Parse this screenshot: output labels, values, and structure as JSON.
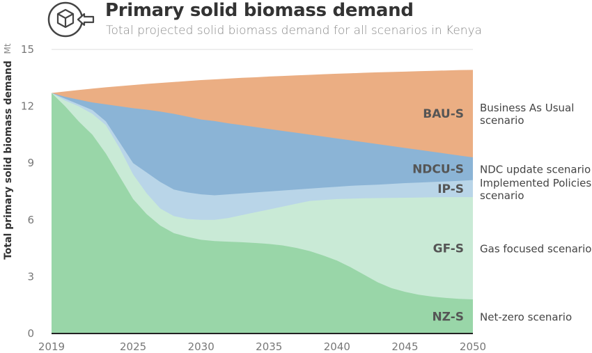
{
  "title": "Primary solid biomass demand",
  "subtitle": "Total projected solid biomass demand for all scenarios in Kenya",
  "logo_icon": "biomass-cube-icon",
  "chart_data": {
    "type": "area",
    "ylabel": "Total primary solid biomass demand",
    "yunit": "Mt",
    "ylim": [
      0,
      15
    ],
    "yticks": [
      0,
      3,
      6,
      9,
      12,
      15
    ],
    "xlim": [
      2019,
      2050
    ],
    "xticks": [
      2019,
      2025,
      2030,
      2035,
      2040,
      2045,
      2050
    ],
    "grid": "horizontal",
    "x": [
      2019,
      2020,
      2021,
      2022,
      2023,
      2024,
      2025,
      2026,
      2027,
      2028,
      2029,
      2030,
      2031,
      2032,
      2033,
      2034,
      2035,
      2036,
      2037,
      2038,
      2039,
      2040,
      2041,
      2042,
      2043,
      2044,
      2045,
      2046,
      2047,
      2048,
      2049,
      2050
    ],
    "series": [
      {
        "name": "Business As Usual scenario",
        "code": "BAU-S",
        "color": "#EBAE83",
        "label_lines": [
          "Business As Usual",
          "scenario"
        ],
        "values": [
          12.7,
          12.78,
          12.86,
          12.93,
          13.0,
          13.06,
          13.12,
          13.18,
          13.23,
          13.28,
          13.33,
          13.38,
          13.42,
          13.46,
          13.5,
          13.53,
          13.57,
          13.6,
          13.63,
          13.66,
          13.69,
          13.72,
          13.74,
          13.77,
          13.79,
          13.81,
          13.83,
          13.85,
          13.87,
          13.89,
          13.91,
          13.92
        ]
      },
      {
        "name": "NDC update scenario",
        "code": "NDCU-S",
        "color": "#8BB4D6",
        "label_lines": [
          "NDC update scenario"
        ],
        "values": [
          12.7,
          12.5,
          12.35,
          12.2,
          12.1,
          12.0,
          11.9,
          11.82,
          11.72,
          11.6,
          11.45,
          11.3,
          11.22,
          11.1,
          11.0,
          10.9,
          10.8,
          10.7,
          10.6,
          10.5,
          10.4,
          10.3,
          10.2,
          10.1,
          10.0,
          9.9,
          9.8,
          9.7,
          9.6,
          9.5,
          9.4,
          9.3
        ]
      },
      {
        "name": "Implemented Policies scenario",
        "code": "IP-S",
        "color": "#B9D5E8",
        "label_lines": [
          "Implemented Policies",
          "scenario"
        ],
        "values": [
          12.7,
          12.4,
          12.1,
          11.8,
          11.2,
          10.1,
          9.0,
          8.5,
          8.0,
          7.6,
          7.45,
          7.35,
          7.3,
          7.35,
          7.4,
          7.45,
          7.5,
          7.55,
          7.6,
          7.65,
          7.7,
          7.75,
          7.8,
          7.83,
          7.86,
          7.9,
          7.94,
          7.97,
          8.0,
          8.03,
          8.06,
          8.1
        ]
      },
      {
        "name": "Gas focused scenario",
        "code": "GF-S",
        "color": "#C9EAD6",
        "label_lines": [
          "Gas focused scenario"
        ],
        "values": [
          12.7,
          12.3,
          12.0,
          11.6,
          11.0,
          9.8,
          8.4,
          7.4,
          6.6,
          6.2,
          6.05,
          6.0,
          6.0,
          6.1,
          6.25,
          6.4,
          6.55,
          6.7,
          6.85,
          7.0,
          7.05,
          7.1,
          7.12,
          7.14,
          7.15,
          7.16,
          7.17,
          7.18,
          7.19,
          7.2,
          7.2,
          7.2
        ]
      },
      {
        "name": "Net-zero scenario",
        "code": "NZ-S",
        "color": "#99D6A8",
        "label_lines": [
          "Net-zero scenario"
        ],
        "values": [
          12.7,
          12.0,
          11.2,
          10.5,
          9.5,
          8.3,
          7.1,
          6.3,
          5.7,
          5.3,
          5.1,
          4.95,
          4.88,
          4.85,
          4.82,
          4.78,
          4.73,
          4.65,
          4.52,
          4.35,
          4.12,
          3.85,
          3.5,
          3.1,
          2.7,
          2.4,
          2.2,
          2.05,
          1.95,
          1.88,
          1.83,
          1.8
        ]
      }
    ]
  }
}
